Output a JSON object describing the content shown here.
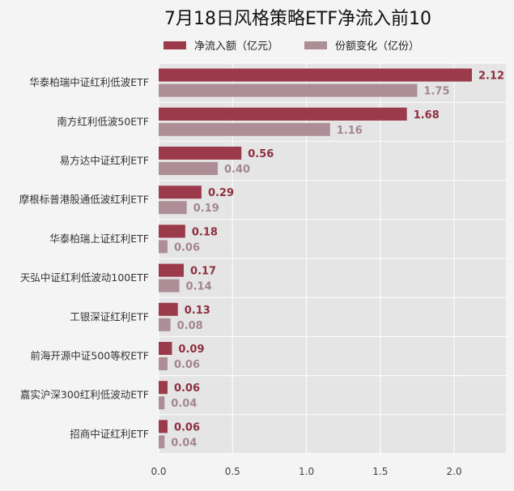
{
  "chart_data": {
    "type": "bar",
    "orientation": "horizontal",
    "title": "7月18日风格策略ETF净流入前10",
    "categories": [
      "华泰柏瑞中证红利低波ETF",
      "南方红利低波50ETF",
      "易方达中证红利ETF",
      "摩根标普港股通低波红利ETF",
      "华泰柏瑞上证红利ETF",
      "天弘中证红利低波动100ETF",
      "工银深证红利ETF",
      "前海开源中证500等权ETF",
      "嘉实沪深300红利低波动ETF",
      "招商中证红利ETF"
    ],
    "series": [
      {
        "name": "净流入额（亿元）",
        "color": "#9b3a4b",
        "label_color": "#8e2f40",
        "values": [
          2.12,
          1.68,
          0.56,
          0.29,
          0.18,
          0.17,
          0.13,
          0.09,
          0.06,
          0.06
        ]
      },
      {
        "name": "份额变化（亿份）",
        "color": "#ae8e96",
        "label_color": "#a38690",
        "values": [
          1.75,
          1.16,
          0.4,
          0.19,
          0.06,
          0.14,
          0.08,
          0.06,
          0.04,
          0.04
        ]
      }
    ],
    "xlim": [
      0,
      2.35
    ],
    "xticks": [
      0.0,
      0.5,
      1.0,
      1.5,
      2.0
    ],
    "xticklabels": [
      "0.0",
      "0.5",
      "1.0",
      "1.5",
      "2.0"
    ],
    "xlabel": "",
    "ylabel": "",
    "grid": true,
    "legend_position": "top",
    "plot_background": "#e5e5e5"
  }
}
